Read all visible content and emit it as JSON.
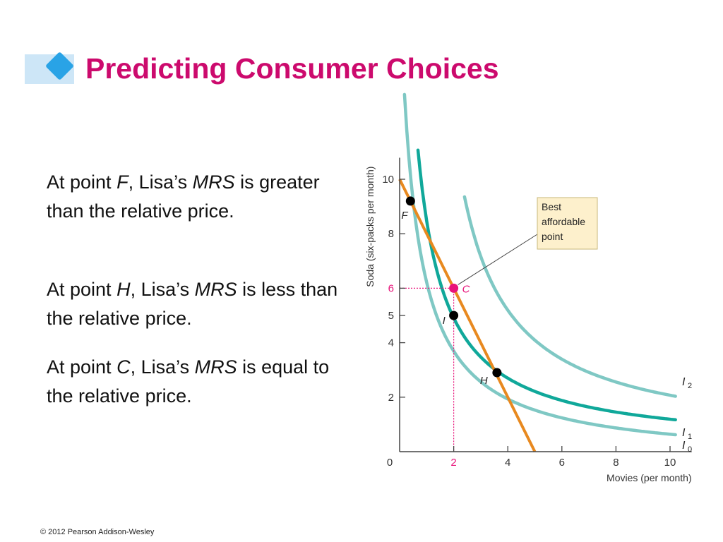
{
  "title": "Predicting Consumer Choices",
  "paragraphs": [
    {
      "pre": "At point ",
      "point": "F",
      "mid": ", Lisa’s ",
      "term": "MRS",
      "post": " is greater than the relative price."
    },
    {
      "pre": "At point ",
      "point": "H",
      "mid": ", Lisa’s ",
      "term": "MRS",
      "post": " is less than the relative price."
    },
    {
      "pre": "At point ",
      "point": "C",
      "mid": ", Lisa’s ",
      "term": "MRS",
      "post": " is equal to the relative price."
    }
  ],
  "footer": "© 2012 Pearson Addison-Wesley",
  "colors": {
    "title": "#cc0a6d",
    "accent_square": "#cde6f7",
    "diamond": "#29a3e6",
    "budget_line": "#e8891f",
    "curve_light": "#7fc8c4",
    "curve_dark": "#10a89a",
    "highlight": "#e8137a",
    "callout_bg": "#fdf0cc"
  },
  "chart_data": {
    "type": "line",
    "xlabel": "Movies (per month)",
    "ylabel": "Soda (six-packs per month)",
    "xlim": [
      0,
      10.8
    ],
    "ylim": [
      0,
      10.4
    ],
    "x_ticks": [
      {
        "value": 0,
        "label": "0"
      },
      {
        "value": 2,
        "label": "2",
        "highlight": true
      },
      {
        "value": 4,
        "label": "4"
      },
      {
        "value": 6,
        "label": "6"
      },
      {
        "value": 8,
        "label": "8"
      },
      {
        "value": 10,
        "label": "10"
      }
    ],
    "y_ticks": [
      {
        "value": 2,
        "label": "2"
      },
      {
        "value": 4,
        "label": "4"
      },
      {
        "value": 5,
        "label": "5"
      },
      {
        "value": 6,
        "label": "6",
        "highlight": true
      },
      {
        "value": 8,
        "label": "8"
      },
      {
        "value": 10,
        "label": "10"
      }
    ],
    "budget_line": {
      "x": [
        0,
        5
      ],
      "y": [
        10,
        0
      ]
    },
    "indifference_curves": [
      {
        "name": "I",
        "sub": "0",
        "style": "light",
        "k": 10.5,
        "x0": 0,
        "y0": 0.1,
        "x_start": 0.18,
        "x_end": 10.2
      },
      {
        "name": "I",
        "sub": "1",
        "style": "dark",
        "k": 11.3,
        "x0": 0.25,
        "y0": 0.55,
        "x_start": 0.68,
        "x_end": 10.2
      },
      {
        "name": "I",
        "sub": "2",
        "style": "light",
        "k": 17.3,
        "x0": 1.1,
        "y0": 0.7,
        "x_start": 2.4,
        "x_end": 10.2
      }
    ],
    "points": [
      {
        "label": "F",
        "x": 0.4,
        "y": 9.2
      },
      {
        "label": "C",
        "x": 2,
        "y": 6,
        "highlight": true
      },
      {
        "label": "I",
        "x": 2,
        "y": 5
      },
      {
        "label": "H",
        "x": 3.6,
        "y": 2.9
      }
    ],
    "guides": {
      "x": 2,
      "y": 6
    },
    "annotation": {
      "lines": [
        "Best",
        "affordable",
        "point"
      ],
      "target": "C"
    }
  }
}
